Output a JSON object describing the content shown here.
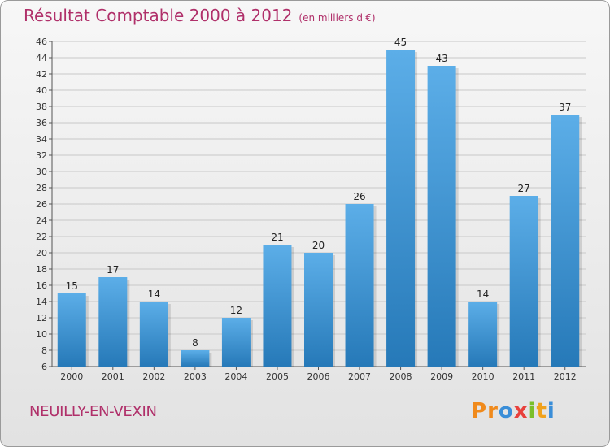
{
  "header": {
    "title": "Résultat Comptable 2000 à 2012",
    "unit": "(en milliers d'€)"
  },
  "footer": {
    "commune": "NEUILLY-EN-VEXIN",
    "logo_letters": [
      "P",
      "r",
      "o",
      "x",
      "i",
      "t",
      "i"
    ],
    "logo_colors": [
      "#f08a1c",
      "#f08a1c",
      "#3a8ed8",
      "#e8413c",
      "#7bbf2a",
      "#f0a21c",
      "#3a8ed8"
    ]
  },
  "colors": {
    "title": "#b0306a",
    "bar_top": "#5caee8",
    "bar_bottom": "#2679b8",
    "grid": "#c8c8c8"
  },
  "chart_data": {
    "type": "bar",
    "title": "Résultat Comptable 2000 à 2012",
    "xlabel": "",
    "ylabel": "",
    "categories": [
      "2000",
      "2001",
      "2002",
      "2003",
      "2004",
      "2005",
      "2006",
      "2007",
      "2008",
      "2009",
      "2010",
      "2011",
      "2012"
    ],
    "values": [
      15,
      17,
      14,
      8,
      12,
      21,
      20,
      26,
      45,
      43,
      14,
      27,
      37
    ],
    "ylim": [
      6,
      46
    ],
    "yticks": [
      6,
      8,
      10,
      12,
      14,
      16,
      18,
      20,
      22,
      24,
      26,
      28,
      30,
      32,
      34,
      36,
      38,
      40,
      42,
      44,
      46
    ],
    "grid": true
  }
}
